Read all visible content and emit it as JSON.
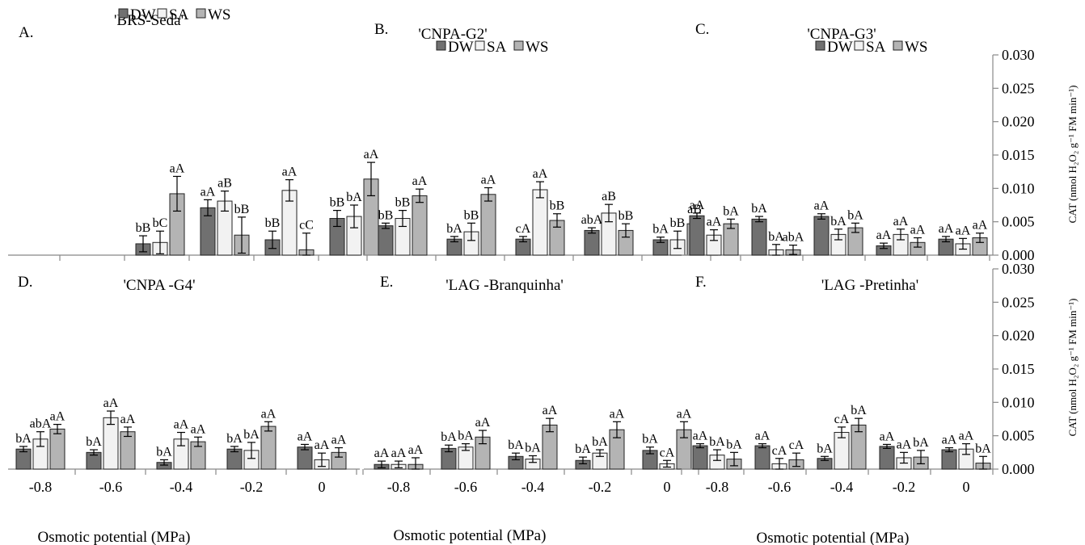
{
  "figure": {
    "x_axis_label": "Osmotic potential (MPa)",
    "y_axis_label": "CAT (nmol H₂O₂ g⁻¹ FM min⁻¹)",
    "legend_labels": [
      "DW",
      "SA",
      "WS"
    ],
    "y_ticks": [
      "0.030",
      "0.025",
      "0.020",
      "0.015",
      "0.010",
      "0.005",
      "0.000"
    ],
    "x_ticks": [
      "-0.8",
      "-0.6",
      "-0.4",
      "-0.2",
      "0"
    ]
  },
  "chart_data": [
    {
      "type": "bar",
      "panel": "A.",
      "title": "'BRS-Seda'",
      "categories": [
        "-0.8",
        "-0.6",
        "-0.4",
        "-0.2",
        "0"
      ],
      "ylim": [
        0,
        0.03
      ],
      "legend_position": "top",
      "show_x_ticks": false,
      "series": [
        {
          "name": "DW",
          "color": "#707070",
          "values": [
            null,
            0.0017,
            0.0071,
            0.0023,
            0.0055
          ],
          "errors": [
            null,
            0.0012,
            0.0012,
            0.0013,
            0.0012
          ],
          "labels": [
            "",
            "bB",
            "aA",
            "bB",
            "bB"
          ]
        },
        {
          "name": "SA",
          "color": "#f2f2f2",
          "values": [
            null,
            0.0019,
            0.0081,
            0.0097,
            0.0058
          ],
          "errors": [
            null,
            0.0017,
            0.0015,
            0.0016,
            0.0017
          ],
          "labels": [
            "",
            "bC",
            "aB",
            "aA",
            "bA"
          ]
        },
        {
          "name": "WS",
          "color": "#b4b4b4",
          "values": [
            null,
            0.0092,
            0.003,
            0.0008,
            0.0114
          ],
          "errors": [
            null,
            0.0026,
            0.0027,
            0.0025,
            0.0025
          ],
          "labels": [
            "",
            "aA",
            "bB",
            "cC",
            "aA"
          ]
        }
      ]
    },
    {
      "type": "bar",
      "panel": "B.",
      "title": "'CNPA-G2'",
      "categories": [
        "-0.8",
        "-0.6",
        "-0.4",
        "-0.2",
        "0"
      ],
      "ylim": [
        0,
        0.03
      ],
      "legend_position": "top",
      "show_x_ticks": false,
      "series": [
        {
          "name": "DW",
          "color": "#707070",
          "values": [
            0.0044,
            0.0024,
            0.0024,
            0.0037,
            0.0023
          ],
          "errors": [
            0.0004,
            0.0004,
            0.0004,
            0.0004,
            0.0004
          ],
          "labels": [
            "bB",
            "bA",
            "cA",
            "abA",
            "bA"
          ]
        },
        {
          "name": "SA",
          "color": "#f2f2f2",
          "values": [
            0.0055,
            0.0035,
            0.0098,
            0.0063,
            0.0023
          ],
          "errors": [
            0.0012,
            0.0013,
            0.0012,
            0.0013,
            0.0013
          ],
          "labels": [
            "bB",
            "bB",
            "aA",
            "aB",
            "bB"
          ]
        },
        {
          "name": "WS",
          "color": "#b4b4b4",
          "values": [
            0.0089,
            0.0091,
            0.0052,
            0.0037,
            0.0047
          ],
          "errors": [
            0.001,
            0.001,
            0.001,
            0.001,
            0.001
          ],
          "labels": [
            "aA",
            "aA",
            "bB",
            "bB",
            "aB"
          ]
        }
      ]
    },
    {
      "type": "bar",
      "panel": "C.",
      "title": "'CNPA-G3'",
      "categories": [
        "-0.8",
        "-0.6",
        "-0.4",
        "-0.2",
        "0"
      ],
      "ylim": [
        0,
        0.03
      ],
      "legend_position": "top",
      "show_x_ticks": false,
      "series": [
        {
          "name": "DW",
          "color": "#707070",
          "values": [
            0.0059,
            0.0054,
            0.0058,
            0.0014,
            0.0024
          ],
          "errors": [
            0.0004,
            0.0004,
            0.0004,
            0.0004,
            0.0004
          ],
          "labels": [
            "aA",
            "bA",
            "aA",
            "aA",
            "aA"
          ]
        },
        {
          "name": "SA",
          "color": "#f2f2f2",
          "values": [
            0.003,
            0.0008,
            0.0031,
            0.0031,
            0.0017
          ],
          "errors": [
            0.0008,
            0.0008,
            0.0008,
            0.0008,
            0.0008
          ],
          "labels": [
            "aA",
            "bA",
            "bA",
            "aA",
            "aA"
          ]
        },
        {
          "name": "WS",
          "color": "#b4b4b4",
          "values": [
            0.0047,
            0.0008,
            0.0041,
            0.0019,
            0.0026
          ],
          "errors": [
            0.0007,
            0.0007,
            0.0007,
            0.0007,
            0.0007
          ],
          "labels": [
            "bA",
            "abA",
            "bA",
            "aA",
            "aA"
          ]
        }
      ]
    },
    {
      "type": "bar",
      "panel": "D.",
      "title": "'CNPA -G4'",
      "categories": [
        "-0.8",
        "-0.6",
        "-0.4",
        "-0.2",
        "0"
      ],
      "ylim": [
        0,
        0.03
      ],
      "show_x_ticks": true,
      "series": [
        {
          "name": "DW",
          "color": "#707070",
          "values": [
            0.003,
            0.0025,
            0.001,
            0.003,
            0.0033
          ],
          "errors": [
            0.0004,
            0.0004,
            0.0004,
            0.0004,
            0.0004
          ],
          "labels": [
            "bA",
            "bA",
            "bA",
            "bA",
            "aA"
          ]
        },
        {
          "name": "SA",
          "color": "#f2f2f2",
          "values": [
            0.0045,
            0.0077,
            0.0045,
            0.0028,
            0.0014
          ],
          "errors": [
            0.0011,
            0.001,
            0.001,
            0.0012,
            0.001
          ],
          "labels": [
            "abA",
            "aA",
            "aA",
            "bA",
            "aA"
          ]
        },
        {
          "name": "WS",
          "color": "#b4b4b4",
          "values": [
            0.006,
            0.0056,
            0.0041,
            0.0064,
            0.0025
          ],
          "errors": [
            0.0007,
            0.0007,
            0.0007,
            0.0007,
            0.0007
          ],
          "labels": [
            "aA",
            "aA",
            "aA",
            "aA",
            "aA"
          ]
        }
      ]
    },
    {
      "type": "bar",
      "panel": "E.",
      "title": "'LAG  -Branquinha'",
      "categories": [
        "-0.8",
        "-0.6",
        "-0.4",
        "-0.2",
        "0"
      ],
      "ylim": [
        0,
        0.03
      ],
      "show_x_ticks": true,
      "series": [
        {
          "name": "DW",
          "color": "#707070",
          "values": [
            0.0007,
            0.0031,
            0.0019,
            0.0013,
            0.0028
          ],
          "errors": [
            0.0005,
            0.0005,
            0.0005,
            0.0005,
            0.0005
          ],
          "labels": [
            "aA",
            "bA",
            "bA",
            "bA",
            "bA"
          ]
        },
        {
          "name": "SA",
          "color": "#f2f2f2",
          "values": [
            0.0007,
            0.0033,
            0.0015,
            0.0024,
            0.0008
          ],
          "errors": [
            0.0005,
            0.0005,
            0.0005,
            0.0005,
            0.0005
          ],
          "labels": [
            "aA",
            "bA",
            "bA",
            "bA",
            "cA"
          ]
        },
        {
          "name": "WS",
          "color": "#b4b4b4",
          "values": [
            0.0007,
            0.0048,
            0.0066,
            0.0059,
            0.0059
          ],
          "errors": [
            0.001,
            0.001,
            0.001,
            0.0012,
            0.0012
          ],
          "labels": [
            "aA",
            "aA",
            "aA",
            "aA",
            "aA"
          ]
        }
      ]
    },
    {
      "type": "bar",
      "panel": "F.",
      "title": "'LAG -Pretinha'",
      "categories": [
        "-0.8",
        "-0.6",
        "-0.4",
        "-0.2",
        "0"
      ],
      "ylim": [
        0,
        0.03
      ],
      "show_x_ticks": true,
      "series": [
        {
          "name": "DW",
          "color": "#707070",
          "values": [
            0.0035,
            0.0035,
            0.0016,
            0.0034,
            0.0029
          ],
          "errors": [
            0.0003,
            0.0003,
            0.0003,
            0.0003,
            0.0003
          ],
          "labels": [
            "aA",
            "aA",
            "bA",
            "aA",
            "aA"
          ]
        },
        {
          "name": "SA",
          "color": "#f2f2f2",
          "values": [
            0.0021,
            0.0008,
            0.0055,
            0.0017,
            0.003
          ],
          "errors": [
            0.0008,
            0.0008,
            0.0008,
            0.0008,
            0.0008
          ],
          "labels": [
            "bA",
            "cA",
            "cA",
            "aA",
            "aA"
          ]
        },
        {
          "name": "WS",
          "color": "#b4b4b4",
          "values": [
            0.0015,
            0.0014,
            0.0066,
            0.0018,
            0.0009
          ],
          "errors": [
            0.001,
            0.001,
            0.001,
            0.001,
            0.001
          ],
          "labels": [
            "bA",
            "cA",
            "bA",
            "bA",
            "bA"
          ]
        }
      ]
    }
  ]
}
